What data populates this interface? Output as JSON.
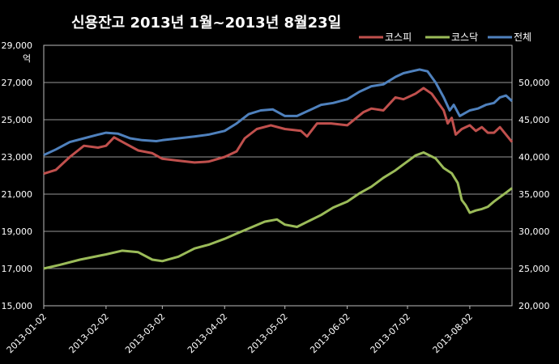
{
  "chart_data": {
    "type": "line",
    "title": "신용잔고 2013년 1월~2013년 8월23일",
    "y_left_unit": "억",
    "y_left": {
      "min": 15000,
      "max": 29000,
      "ticks": [
        "15,000",
        "17,000",
        "19,000",
        "21,000",
        "23,000",
        "25,000",
        "27,000",
        "29,000"
      ]
    },
    "y_right": {
      "min": 20000,
      "max": 55000,
      "ticks": [
        "20,000",
        "25,000",
        "30,000",
        "35,000",
        "40,000",
        "45,000",
        "50,000"
      ]
    },
    "x_ticks": [
      "2013-01-02",
      "2013-02-02",
      "2013-03-02",
      "2013-04-02",
      "2013-05-02",
      "2013-06-02",
      "2013-07-02",
      "2013-08-02"
    ],
    "x_range": [
      "2013-01-02",
      "2013-08-23"
    ],
    "grid": true,
    "legend_position": "top-right",
    "series": [
      {
        "name": "코스피",
        "axis": "left",
        "color": "#c0504d",
        "points": [
          [
            "2013-01-02",
            22100
          ],
          [
            "2013-01-08",
            22300
          ],
          [
            "2013-01-15",
            23000
          ],
          [
            "2013-01-22",
            23600
          ],
          [
            "2013-01-29",
            23500
          ],
          [
            "2013-02-02",
            23600
          ],
          [
            "2013-02-06",
            24050
          ],
          [
            "2013-02-12",
            23700
          ],
          [
            "2013-02-18",
            23350
          ],
          [
            "2013-02-25",
            23200
          ],
          [
            "2013-03-02",
            22900
          ],
          [
            "2013-03-10",
            22800
          ],
          [
            "2013-03-18",
            22700
          ],
          [
            "2013-03-25",
            22750
          ],
          [
            "2013-04-02",
            23000
          ],
          [
            "2013-04-08",
            23300
          ],
          [
            "2013-04-12",
            24000
          ],
          [
            "2013-04-18",
            24500
          ],
          [
            "2013-04-25",
            24700
          ],
          [
            "2013-05-02",
            24500
          ],
          [
            "2013-05-10",
            24400
          ],
          [
            "2013-05-13",
            24100
          ],
          [
            "2013-05-18",
            24800
          ],
          [
            "2013-05-25",
            24800
          ],
          [
            "2013-06-02",
            24700
          ],
          [
            "2013-06-10",
            25400
          ],
          [
            "2013-06-14",
            25600
          ],
          [
            "2013-06-20",
            25500
          ],
          [
            "2013-06-26",
            26200
          ],
          [
            "2013-06-30",
            26100
          ],
          [
            "2013-07-06",
            26400
          ],
          [
            "2013-07-10",
            26700
          ],
          [
            "2013-07-14",
            26400
          ],
          [
            "2013-07-18",
            25800
          ],
          [
            "2013-07-20",
            25500
          ],
          [
            "2013-07-22",
            24800
          ],
          [
            "2013-07-24",
            25100
          ],
          [
            "2013-07-26",
            24200
          ],
          [
            "2013-07-29",
            24500
          ],
          [
            "2013-08-02",
            24700
          ],
          [
            "2013-08-05",
            24400
          ],
          [
            "2013-08-08",
            24600
          ],
          [
            "2013-08-11",
            24300
          ],
          [
            "2013-08-14",
            24300
          ],
          [
            "2013-08-17",
            24600
          ],
          [
            "2013-08-20",
            24200
          ],
          [
            "2013-08-23",
            23800
          ]
        ]
      },
      {
        "name": "코스닥",
        "axis": "right",
        "color": "#9bbb59",
        "points": [
          [
            "2013-01-02",
            25000
          ],
          [
            "2013-01-10",
            25500
          ],
          [
            "2013-01-20",
            26200
          ],
          [
            "2013-02-02",
            26900
          ],
          [
            "2013-02-10",
            27400
          ],
          [
            "2013-02-18",
            27200
          ],
          [
            "2013-02-25",
            26200
          ],
          [
            "2013-03-02",
            26000
          ],
          [
            "2013-03-10",
            26600
          ],
          [
            "2013-03-18",
            27700
          ],
          [
            "2013-03-25",
            28200
          ],
          [
            "2013-04-02",
            29000
          ],
          [
            "2013-04-08",
            29700
          ],
          [
            "2013-04-15",
            30500
          ],
          [
            "2013-04-22",
            31300
          ],
          [
            "2013-04-28",
            31600
          ],
          [
            "2013-05-02",
            30900
          ],
          [
            "2013-05-08",
            30600
          ],
          [
            "2013-05-14",
            31400
          ],
          [
            "2013-05-20",
            32200
          ],
          [
            "2013-05-26",
            33200
          ],
          [
            "2013-06-02",
            34000
          ],
          [
            "2013-06-08",
            35100
          ],
          [
            "2013-06-14",
            36000
          ],
          [
            "2013-06-20",
            37200
          ],
          [
            "2013-06-26",
            38200
          ],
          [
            "2013-06-30",
            39000
          ],
          [
            "2013-07-06",
            40200
          ],
          [
            "2013-07-10",
            40600
          ],
          [
            "2013-07-16",
            39800
          ],
          [
            "2013-07-20",
            38500
          ],
          [
            "2013-07-24",
            37800
          ],
          [
            "2013-07-27",
            36500
          ],
          [
            "2013-07-29",
            34200
          ],
          [
            "2013-07-31",
            33500
          ],
          [
            "2013-08-02",
            32500
          ],
          [
            "2013-08-05",
            32800
          ],
          [
            "2013-08-08",
            33000
          ],
          [
            "2013-08-11",
            33300
          ],
          [
            "2013-08-14",
            34000
          ],
          [
            "2013-08-17",
            34600
          ],
          [
            "2013-08-20",
            35200
          ],
          [
            "2013-08-23",
            35800
          ]
        ]
      },
      {
        "name": "전체",
        "axis": "left",
        "color": "#4f81bd",
        "points": [
          [
            "2013-01-02",
            23100
          ],
          [
            "2013-01-08",
            23400
          ],
          [
            "2013-01-15",
            23800
          ],
          [
            "2013-01-22",
            24000
          ],
          [
            "2013-01-29",
            24200
          ],
          [
            "2013-02-02",
            24300
          ],
          [
            "2013-02-08",
            24250
          ],
          [
            "2013-02-14",
            24000
          ],
          [
            "2013-02-20",
            23900
          ],
          [
            "2013-02-27",
            23850
          ],
          [
            "2013-03-02",
            23900
          ],
          [
            "2013-03-10",
            24000
          ],
          [
            "2013-03-18",
            24100
          ],
          [
            "2013-03-25",
            24200
          ],
          [
            "2013-04-02",
            24400
          ],
          [
            "2013-04-08",
            24800
          ],
          [
            "2013-04-14",
            25300
          ],
          [
            "2013-04-20",
            25500
          ],
          [
            "2013-04-26",
            25550
          ],
          [
            "2013-05-02",
            25200
          ],
          [
            "2013-05-08",
            25200
          ],
          [
            "2013-05-14",
            25500
          ],
          [
            "2013-05-20",
            25800
          ],
          [
            "2013-05-26",
            25900
          ],
          [
            "2013-06-02",
            26100
          ],
          [
            "2013-06-08",
            26500
          ],
          [
            "2013-06-14",
            26800
          ],
          [
            "2013-06-20",
            26900
          ],
          [
            "2013-06-26",
            27300
          ],
          [
            "2013-06-30",
            27500
          ],
          [
            "2013-07-04",
            27600
          ],
          [
            "2013-07-08",
            27700
          ],
          [
            "2013-07-12",
            27600
          ],
          [
            "2013-07-16",
            27000
          ],
          [
            "2013-07-20",
            26200
          ],
          [
            "2013-07-23",
            25500
          ],
          [
            "2013-07-25",
            25800
          ],
          [
            "2013-07-28",
            25200
          ],
          [
            "2013-08-02",
            25500
          ],
          [
            "2013-08-06",
            25600
          ],
          [
            "2013-08-10",
            25800
          ],
          [
            "2013-08-14",
            25900
          ],
          [
            "2013-08-17",
            26200
          ],
          [
            "2013-08-20",
            26300
          ],
          [
            "2013-08-23",
            26000
          ]
        ]
      }
    ]
  }
}
